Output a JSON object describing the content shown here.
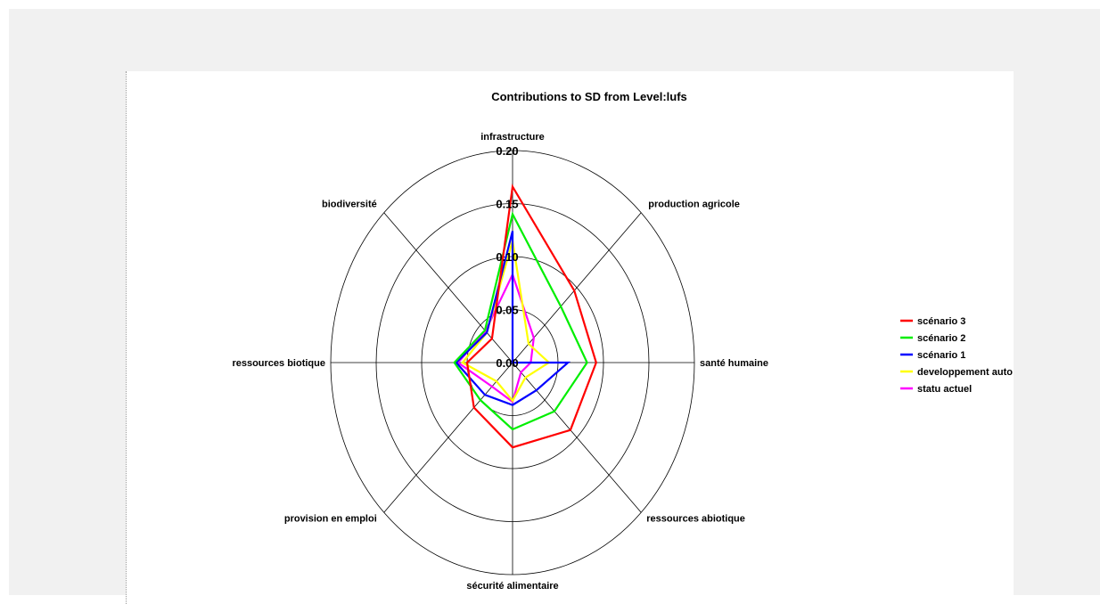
{
  "chart_data": {
    "type": "radar",
    "title": "Contributions to SD from Level:lufs",
    "axes": [
      "infrastructure",
      "production agricole",
      "santé humaine",
      "ressources abiotique",
      "sécurité alimentaire",
      "provision en emploi",
      "ressources biotique",
      "biodiversité"
    ],
    "rlim": [
      0,
      0.2
    ],
    "ticks": [
      0.0,
      0.05,
      0.1,
      0.15,
      0.2
    ],
    "tick_labels": [
      "0.00",
      "0.05",
      "0.10",
      "0.15",
      "0.20"
    ],
    "grid": true,
    "legend_position": "right",
    "series": [
      {
        "name": "scénario 3",
        "color": "#ff0000",
        "values": [
          0.166,
          0.096,
          0.092,
          0.09,
          0.08,
          0.06,
          0.05,
          0.032
        ]
      },
      {
        "name": "scénario 2",
        "color": "#00ee00",
        "values": [
          0.14,
          0.075,
          0.082,
          0.065,
          0.063,
          0.05,
          0.064,
          0.043
        ]
      },
      {
        "name": "scénario 1",
        "color": "#0000ff",
        "values": [
          0.124,
          0.0,
          0.061,
          0.037,
          0.04,
          0.043,
          0.062,
          0.04
        ]
      },
      {
        "name": "developpement auto",
        "color": "#ffff00",
        "values": [
          0.115,
          0.025,
          0.04,
          0.02,
          0.036,
          0.025,
          0.055,
          0.04
        ]
      },
      {
        "name": "statu actuel",
        "color": "#ff00ff",
        "values": [
          0.083,
          0.033,
          0.02,
          0.013,
          0.037,
          0.032,
          0.06,
          0.042
        ]
      }
    ]
  }
}
